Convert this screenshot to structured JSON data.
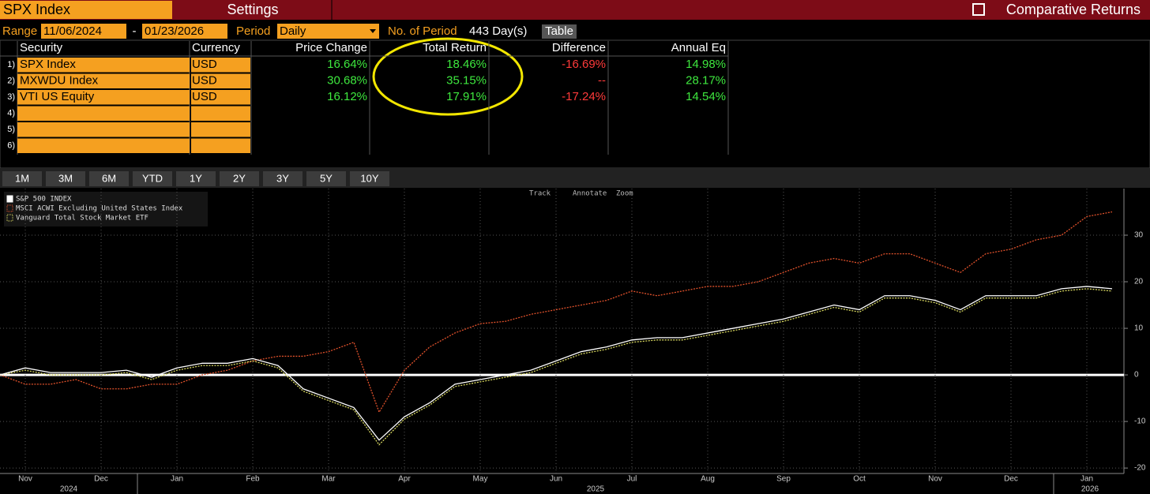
{
  "header": {
    "title": "SPX Index",
    "settings": "Settings",
    "function": "Comparative Returns"
  },
  "controls": {
    "range_label": "Range",
    "start": "11/06/2024",
    "dash": "-",
    "end": "01/23/2026",
    "period_label": "Period",
    "period": "Daily",
    "count_label": "No. of Period",
    "count": "443 Day(s)",
    "view": "Table"
  },
  "table": {
    "columns": [
      "Security",
      "Currency",
      "Price Change",
      "Total Return",
      "Difference",
      "Annual Eq"
    ],
    "rows": [
      [
        "1)",
        "SPX Index",
        "USD",
        "16.64%",
        "18.46%",
        "-16.69%",
        "14.98%"
      ],
      [
        "2)",
        "MXWDU Index",
        "USD",
        "30.68%",
        "35.15%",
        "--",
        "28.17%"
      ],
      [
        "3)",
        "VTI US Equity",
        "USD",
        "16.12%",
        "17.91%",
        "-17.24%",
        "14.54%"
      ],
      [
        "4)"
      ],
      [
        "5)"
      ],
      [
        "6)"
      ]
    ]
  },
  "ranges": [
    "1M",
    "3M",
    "6M",
    "YTD",
    "1Y",
    "2Y",
    "3Y",
    "5Y",
    "10Y"
  ],
  "chart_tools": [
    "Track",
    "Annotate",
    "Zoom"
  ],
  "chart_data": {
    "type": "line",
    "grid": true,
    "categories": [
      null,
      "Nov",
      null,
      null,
      "Dec",
      null,
      null,
      "Jan",
      null,
      null,
      "Feb",
      null,
      null,
      "Mar",
      null,
      null,
      "Apr",
      null,
      null,
      "May",
      null,
      null,
      "Jun",
      null,
      null,
      "Jul",
      null,
      null,
      "Aug",
      null,
      null,
      "Sep",
      null,
      null,
      "Oct",
      null,
      null,
      "Nov",
      null,
      null,
      "Dec",
      null,
      null,
      "Jan",
      null
    ],
    "x_groups": [
      "2024",
      "2025",
      "2026"
    ],
    "ylim": [
      -21,
      40
    ],
    "yticks": [
      -20,
      -10,
      0,
      10,
      20,
      30
    ],
    "series": [
      {
        "name": "S&P 500 INDEX",
        "color": "#ffffff",
        "dashed": false,
        "values": [
          0,
          1.5,
          0.5,
          0.5,
          0.5,
          1,
          -0.5,
          1.5,
          2.5,
          2.5,
          3.5,
          2,
          -3,
          -5,
          -7,
          -14,
          -9,
          -6,
          -2,
          -1,
          0,
          1,
          3,
          5,
          6,
          7.5,
          8,
          8,
          9,
          10,
          11,
          12,
          13.5,
          15,
          14,
          17,
          17,
          16,
          14,
          17,
          17,
          17,
          18.5,
          19,
          18.5
        ]
      },
      {
        "name": "MSCI ACWI Excluding United States Index",
        "color": "#e0512b",
        "dashed": true,
        "values": [
          0,
          -2,
          -2,
          -1,
          -3,
          -3,
          -2,
          -2,
          0,
          1,
          3,
          4,
          4,
          5,
          7,
          -8,
          1,
          6,
          9,
          11,
          11.5,
          13,
          14,
          15,
          16,
          18,
          17,
          18,
          19,
          19,
          20,
          22,
          24,
          25,
          24,
          26,
          26,
          24,
          22,
          26,
          27,
          29,
          30,
          34,
          35
        ]
      },
      {
        "name": "Vanguard Total Stock Market ETF",
        "color": "#d8d860",
        "dashed": true,
        "values": [
          0,
          1,
          0,
          0,
          0,
          0.5,
          -1,
          1,
          2,
          2,
          3,
          1.5,
          -3.5,
          -5.5,
          -7.5,
          -15,
          -9.5,
          -6.5,
          -2.5,
          -1.5,
          -0.5,
          0.5,
          2.5,
          4.5,
          5.5,
          7,
          7.5,
          7.5,
          8.5,
          9.5,
          10.5,
          11.5,
          13,
          14.5,
          13.5,
          16.5,
          16.5,
          15.5,
          13.5,
          16.5,
          16.5,
          16.5,
          18,
          18.5,
          18
        ]
      }
    ]
  }
}
